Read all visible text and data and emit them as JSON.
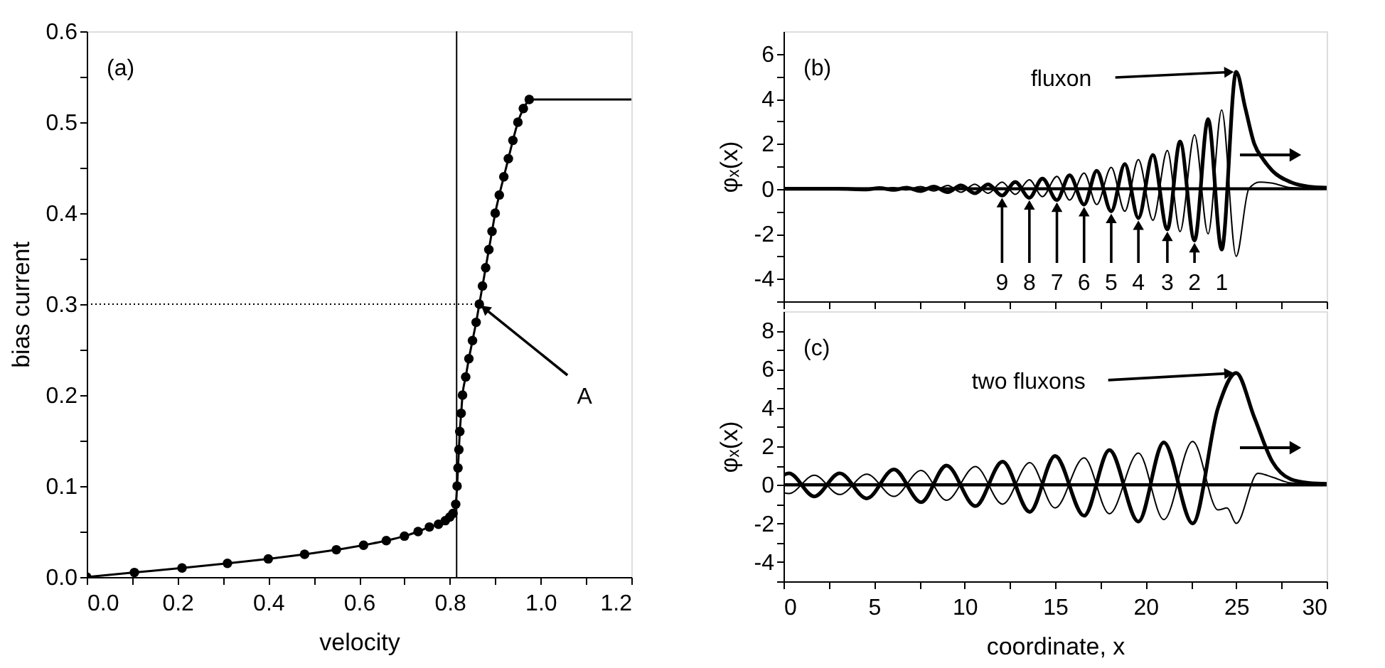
{
  "chart_data": [
    {
      "type": "line",
      "marker": "circle",
      "xlabel": "velocity",
      "ylabel": "bias current",
      "xlim": [
        0,
        1.2
      ],
      "ylim": [
        0,
        0.6
      ],
      "xticks": [
        {
          "value": 0,
          "label": "0.0"
        },
        {
          "value": 0.1,
          "label": null
        },
        {
          "value": 0.2,
          "label": "0.2"
        },
        {
          "value": 0.3,
          "label": null
        },
        {
          "value": 0.4,
          "label": "0.4"
        },
        {
          "value": 0.5,
          "label": null
        },
        {
          "value": 0.6,
          "label": "0.6"
        },
        {
          "value": 0.7,
          "label": null
        },
        {
          "value": 0.8,
          "label": "0.8"
        },
        {
          "value": 0.9,
          "label": null
        },
        {
          "value": 1.0,
          "label": "1.0"
        },
        {
          "value": 1.1,
          "label": null
        },
        {
          "value": 1.2,
          "label": "1.2"
        }
      ],
      "yticks": [
        {
          "value": 0,
          "label": "0.0"
        },
        {
          "value": 0.05,
          "label": null
        },
        {
          "value": 0.1,
          "label": "0.1"
        },
        {
          "value": 0.15,
          "label": null
        },
        {
          "value": 0.2,
          "label": "0.2"
        },
        {
          "value": 0.25,
          "label": null
        },
        {
          "value": 0.3,
          "label": "0.3"
        },
        {
          "value": 0.35,
          "label": null
        },
        {
          "value": 0.4,
          "label": "0.4"
        },
        {
          "value": 0.45,
          "label": null
        },
        {
          "value": 0.5,
          "label": "0.5"
        },
        {
          "value": 0.55,
          "label": null
        },
        {
          "value": 0.6,
          "label": "0.6"
        }
      ],
      "series": [
        {
          "color": "#000000",
          "x": [
            0,
            0.105,
            0.21,
            0.31,
            0.4,
            0.48,
            0.55,
            0.61,
            0.66,
            0.7,
            0.73,
            0.755,
            0.775,
            0.79,
            0.8,
            0.807,
            0.813,
            0.816,
            0.818,
            0.82,
            0.822,
            0.825,
            0.828,
            0.835,
            0.842,
            0.85,
            0.858,
            0.865,
            0.872,
            0.879,
            0.886,
            0.893,
            0.9,
            0.909,
            0.919,
            0.929,
            0.939,
            0.95,
            0.962,
            0.975
          ],
          "values": [
            0,
            0.005,
            0.01,
            0.015,
            0.02,
            0.025,
            0.03,
            0.035,
            0.04,
            0.045,
            0.05,
            0.055,
            0.058,
            0.062,
            0.066,
            0.07,
            0.08,
            0.1,
            0.12,
            0.14,
            0.16,
            0.18,
            0.2,
            0.22,
            0.24,
            0.26,
            0.28,
            0.3,
            0.32,
            0.34,
            0.36,
            0.38,
            0.4,
            0.42,
            0.44,
            0.46,
            0.48,
            0.5,
            0.515,
            0.525
          ]
        },
        {
          "marker": "none",
          "color": "#000000",
          "x": [
            0.975,
            1.2
          ],
          "values": [
            0.525,
            0.525
          ]
        },
        {
          "marker": "none",
          "line_style": "dotted",
          "color": "#000000",
          "x": [
            0,
            0.865
          ],
          "values": [
            0.3,
            0.3
          ]
        }
      ],
      "ref_lines": [
        {
          "axis": "x",
          "value": 0.815,
          "color": "#000000"
        }
      ],
      "annotations": [
        "(a)",
        {
          "text": "A",
          "x": 0.865,
          "y": 0.3
        }
      ]
    },
    {
      "type": "line",
      "ylabel": "φₓ(x)",
      "xlim": [
        0,
        30
      ],
      "ylim": [
        -5,
        7
      ],
      "tick_labels": "y",
      "xticks": [
        0,
        {
          "value": 2.5,
          "label": null
        },
        5,
        {
          "value": 7.5,
          "label": null
        },
        10,
        {
          "value": 12.5,
          "label": null
        },
        15,
        {
          "value": 17.5,
          "label": null
        },
        20,
        {
          "value": 22.5,
          "label": null
        },
        25,
        {
          "value": 27.5,
          "label": null
        },
        30
      ],
      "yticks": [
        {
          "value": -5,
          "label": null
        },
        -4,
        {
          "value": -3,
          "label": null
        },
        -2,
        {
          "value": -1,
          "label": null
        },
        0,
        {
          "value": 1,
          "label": null
        },
        2,
        {
          "value": 3,
          "label": null
        },
        4,
        {
          "value": 5,
          "label": null
        },
        6
      ],
      "series": [
        {
          "color": "#000000",
          "x": [
            0,
            3,
            4.57,
            5.3,
            6.07,
            6.8,
            7.57,
            8.3,
            9.07,
            9.8,
            10.57,
            11.3,
            12.07,
            12.8,
            13.58,
            14.3,
            15.1,
            15.8,
            16.6,
            17.3,
            18.1,
            18.85,
            19.6,
            20.4,
            21.2,
            21.9,
            22.7,
            23.45,
            24.2,
            25,
            25.5,
            26,
            26.5,
            27,
            28,
            29,
            30
          ],
          "values": [
            0,
            0,
            -0.03,
            0.03,
            -0.05,
            0.05,
            -0.1,
            0.1,
            -0.15,
            0.15,
            -0.2,
            0.2,
            -0.3,
            0.3,
            -0.4,
            0.45,
            -0.5,
            0.6,
            -0.7,
            0.8,
            -1.0,
            1.1,
            -1.3,
            1.5,
            -1.8,
            2.1,
            -2.3,
            3.1,
            -2.7,
            5.2,
            3.6,
            2.0,
            1.3,
            0.8,
            0.3,
            0.1,
            0.05
          ]
        },
        {
          "color": "#000000",
          "x": [
            0,
            3,
            4.57,
            5.3,
            6.07,
            6.8,
            7.57,
            8.3,
            9.07,
            9.8,
            10.57,
            11.3,
            12.07,
            12.8,
            13.58,
            14.3,
            15.1,
            15.8,
            16.6,
            17.3,
            18.1,
            18.85,
            19.6,
            20.4,
            21.2,
            21.9,
            22.7,
            23.45,
            24.2,
            25,
            25.7,
            26.3,
            27,
            28,
            30
          ],
          "values": [
            0,
            0,
            0.03,
            -0.03,
            0.05,
            -0.05,
            0.1,
            -0.1,
            0.15,
            -0.15,
            0.2,
            -0.2,
            0.3,
            -0.25,
            0.4,
            -0.35,
            0.55,
            -0.5,
            0.7,
            -0.7,
            0.95,
            -1.0,
            1.3,
            -1.4,
            1.7,
            -1.9,
            2.4,
            -2.0,
            3.5,
            -3.0,
            0,
            0.3,
            0.25,
            0.05,
            0
          ]
        }
      ],
      "ref_lines": [
        {
          "axis": "y",
          "value": 0,
          "color": "#000000"
        }
      ],
      "annotations": [
        "(b)",
        {
          "text": "fluxon",
          "x": 25,
          "y": 5.2
        },
        {
          "text": "9",
          "x": 12.07,
          "y": -0.3
        },
        {
          "text": "8",
          "x": 13.58,
          "y": -0.4
        },
        {
          "text": "7",
          "x": 15.1,
          "y": -0.5
        },
        {
          "text": "6",
          "x": 16.6,
          "y": -0.7
        },
        {
          "text": "5",
          "x": 18.1,
          "y": -1.0
        },
        {
          "text": "4",
          "x": 19.6,
          "y": -1.3
        },
        {
          "text": "3",
          "x": 21.2,
          "y": -1.8
        },
        {
          "text": "2",
          "x": 22.7,
          "y": -2.3
        },
        {
          "text": "1",
          "x": 24.2,
          "y": -2.7
        }
      ]
    },
    {
      "type": "line",
      "ylabel": "φₓ(x)",
      "xlabel": "coordinate, x",
      "xlim": [
        0,
        30
      ],
      "ylim": [
        -5,
        9
      ],
      "xticks": [
        0,
        {
          "value": 2.5,
          "label": null
        },
        5,
        {
          "value": 7.5,
          "label": null
        },
        10,
        {
          "value": 12.5,
          "label": null
        },
        15,
        {
          "value": 17.5,
          "label": null
        },
        20,
        {
          "value": 22.5,
          "label": null
        },
        25,
        {
          "value": 27.5,
          "label": null
        },
        30
      ],
      "yticks": [
        {
          "value": -5,
          "label": null
        },
        -4,
        {
          "value": -3,
          "label": null
        },
        -2,
        {
          "value": -1,
          "label": null
        },
        0,
        {
          "value": 1,
          "label": null
        },
        2,
        {
          "value": 3,
          "label": null
        },
        4,
        {
          "value": 5,
          "label": null
        },
        6,
        {
          "value": 7,
          "label": null
        },
        8
      ],
      "series": [
        {
          "color": "#000000",
          "x": [
            0,
            0.3,
            1.7,
            3.1,
            4.6,
            6.1,
            7.6,
            9.0,
            10.6,
            12.1,
            13.6,
            15.0,
            16.6,
            18.0,
            19.6,
            21.0,
            22.6,
            24.0,
            25.0,
            26.0,
            27.0,
            28.0,
            29.0,
            30.0
          ],
          "values": [
            0.5,
            0.6,
            -0.6,
            0.6,
            -0.7,
            0.8,
            -0.9,
            1.0,
            -1.1,
            1.2,
            -1.4,
            1.5,
            -1.6,
            1.8,
            -1.9,
            2.2,
            -2.0,
            4.0,
            5.8,
            3.5,
            1.2,
            0.3,
            0.1,
            0.05
          ]
        },
        {
          "color": "#000000",
          "x": [
            0,
            0.3,
            1.7,
            3.1,
            4.6,
            6.1,
            7.6,
            9.0,
            10.6,
            12.1,
            13.6,
            15.0,
            16.6,
            18.0,
            19.6,
            21.0,
            22.6,
            24.0,
            24.5,
            25.0,
            26.2,
            27.0,
            28.0,
            30.0
          ],
          "values": [
            -0.4,
            -0.45,
            0.5,
            -0.5,
            0.55,
            -0.6,
            0.75,
            -0.8,
            0.95,
            -1.0,
            1.15,
            -1.2,
            1.4,
            -1.5,
            1.65,
            -1.8,
            2.25,
            -1.3,
            -1.2,
            -2.0,
            0.6,
            0.4,
            0.1,
            0
          ]
        }
      ],
      "ref_lines": [
        {
          "axis": "y",
          "value": 0,
          "color": "#000000"
        }
      ],
      "annotations": [
        "(c)",
        {
          "text": "two fluxons",
          "x": 25,
          "y": 5.8
        }
      ]
    }
  ]
}
